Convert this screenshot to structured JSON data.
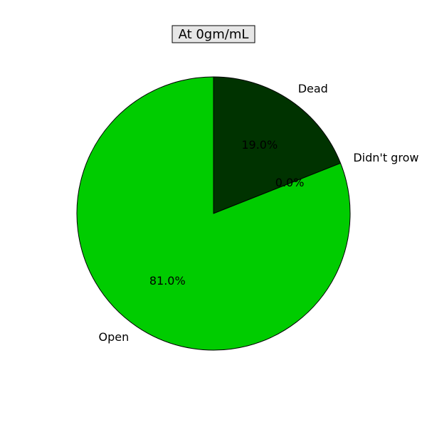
{
  "chart_data": {
    "type": "pie",
    "title": "At 0gm/mL",
    "start_angle_deg": 90,
    "direction": "clockwise",
    "slices": [
      {
        "label": "Dead",
        "value": 19.0,
        "pct_label": "19.0%",
        "color": "#003300"
      },
      {
        "label": "Didn't grow",
        "value": 0.0,
        "pct_label": "0.0%",
        "color": "#006600"
      },
      {
        "label": "Open",
        "value": 81.0,
        "pct_label": "81.0%",
        "color": "#00cc00"
      }
    ],
    "title_box_background": "#e6e6e6",
    "edge_color": "#000000"
  }
}
